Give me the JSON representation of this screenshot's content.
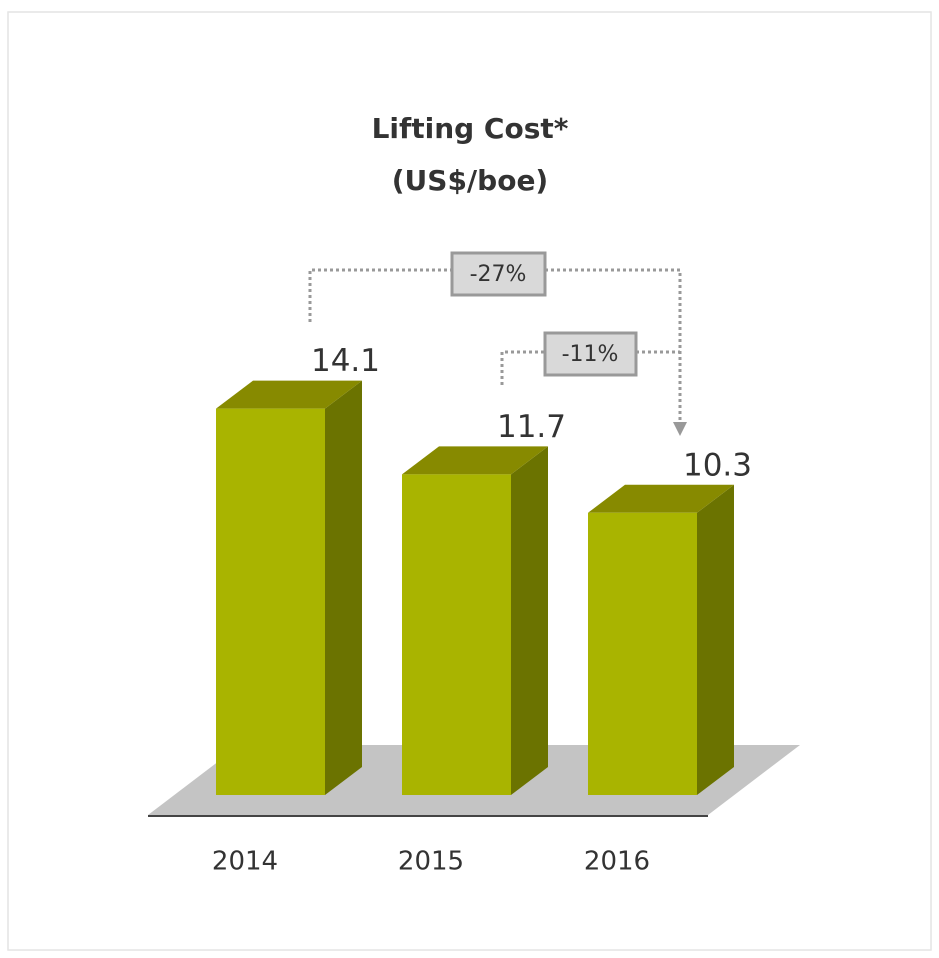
{
  "chart_data": {
    "type": "bar3d",
    "title": "Lifting Cost*",
    "subtitle": "(US$/boe)",
    "categories": [
      "2014",
      "2015",
      "2016"
    ],
    "values": [
      14.1,
      11.7,
      10.3
    ],
    "color": "#a9b400",
    "annotations": [
      {
        "text": "-27%"
      },
      {
        "text": "-11%"
      }
    ]
  }
}
